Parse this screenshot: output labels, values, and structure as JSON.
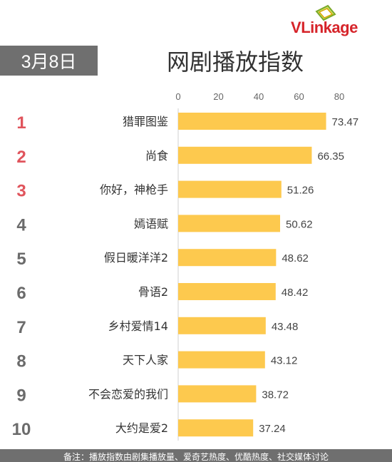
{
  "header": {
    "date": "3月8日",
    "title": "网剧播放指数",
    "logo_text_v": "V",
    "logo_text_rest": "Link",
    "logo_text_tail": "age"
  },
  "footer": {
    "note": "备注：播放指数由剧集播放量、爱奇艺热度、优酷热度、社交媒体讨论"
  },
  "colors": {
    "bar": "#fdc94e",
    "rank_top": "#e0545c",
    "rank_other": "#6b6b6b"
  },
  "chart_data": {
    "type": "bar",
    "orientation": "horizontal",
    "title": "网剧播放指数",
    "xlim": [
      0,
      80
    ],
    "xticks": [
      0,
      20,
      40,
      60,
      80
    ],
    "xtick_labels": [
      "0",
      "20",
      "40",
      "60",
      "80"
    ],
    "categories": [
      "猎罪图鉴",
      "尚食",
      "你好，神枪手",
      "嫣语赋",
      "假日暖洋洋2",
      "骨语2",
      "乡村爱情14",
      "天下人家",
      "不会恋爱的我们",
      "大约是爱2"
    ],
    "ranks": [
      "1",
      "2",
      "3",
      "4",
      "5",
      "6",
      "7",
      "8",
      "9",
      "10"
    ],
    "values": [
      73.47,
      66.35,
      51.26,
      50.62,
      48.62,
      48.42,
      43.48,
      43.12,
      38.72,
      37.24
    ],
    "value_labels": [
      "73.47",
      "66.35",
      "51.26",
      "50.62",
      "48.62",
      "48.42",
      "43.48",
      "43.12",
      "38.72",
      "37.24"
    ],
    "grid": false,
    "legend": "none"
  }
}
